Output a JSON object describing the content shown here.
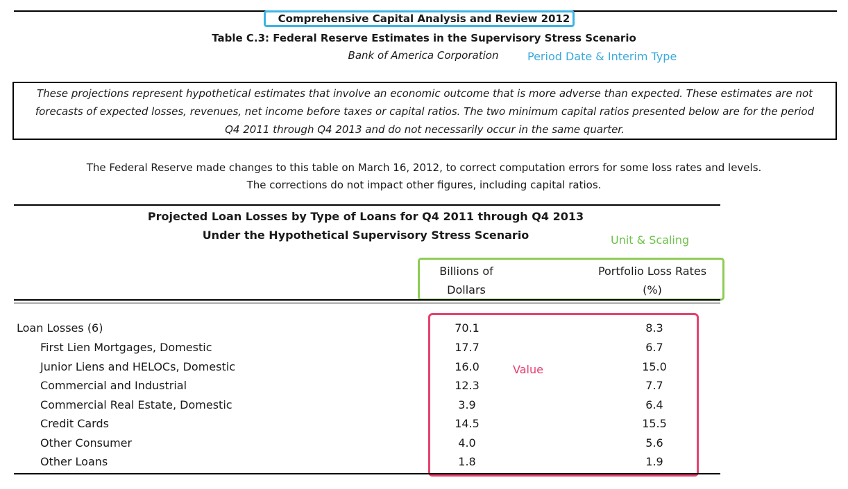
{
  "header": {
    "title": "Comprehensive Capital Analysis and Review 2012",
    "subtitle": "Table C.3: Federal Reserve Estimates in the Supervisory Stress Scenario",
    "company": "Bank of America Corporation"
  },
  "annotations": {
    "period": "Period Date & Interim Type",
    "unit": "Unit & Scaling",
    "value": "Value",
    "colors": {
      "period": "#3cb4e4",
      "unit": "#8dcc55",
      "value": "#e6416f"
    }
  },
  "disclaimer": {
    "line1": "These projections represent hypothetical estimates that involve an economic outcome that is more adverse than expected.  These estimates are not",
    "line2": "forecasts of expected losses, revenues, net income before taxes or capital ratios.  The two minimum capital ratios presented below are for the period",
    "line3": "Q4 2011 through Q4 2013 and do not necessarily occur in the same quarter."
  },
  "correction_note": {
    "line1": "The Federal Reserve made changes to this table on March 16, 2012, to correct computation errors for some loss rates and levels.",
    "line2": "The corrections do not impact other figures, including capital ratios."
  },
  "table": {
    "title_line1": "Projected Loan Losses by Type of Loans for Q4 2011 through Q4 2013",
    "title_line2": "Under the Hypothetical Supervisory Stress Scenario",
    "col_billions": {
      "line1": "Billions of",
      "line2": "Dollars"
    },
    "col_rates": {
      "line1": "Portfolio Loss Rates",
      "line2": "(%)"
    },
    "rows": [
      {
        "label": "Loan Losses (6)",
        "billions": "70.1",
        "rate": "8.3"
      },
      {
        "label": "First Lien Mortgages, Domestic",
        "billions": "17.7",
        "rate": "6.7"
      },
      {
        "label": "Junior Liens and HELOCs, Domestic",
        "billions": "16.0",
        "rate": "15.0"
      },
      {
        "label": "Commercial and Industrial",
        "billions": "12.3",
        "rate": "7.7"
      },
      {
        "label": "Commercial Real Estate, Domestic",
        "billions": "3.9",
        "rate": "6.4"
      },
      {
        "label": "Credit Cards",
        "billions": "14.5",
        "rate": "15.5"
      },
      {
        "label": "Other Consumer",
        "billions": "4.0",
        "rate": "5.6"
      },
      {
        "label": "Other Loans",
        "billions": "1.8",
        "rate": "1.9"
      }
    ]
  }
}
